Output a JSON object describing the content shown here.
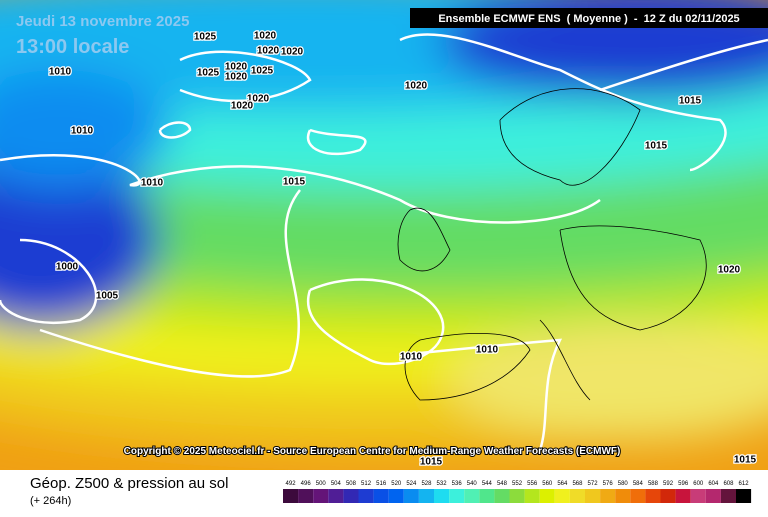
{
  "header": {
    "date": "Jeudi 13 novembre 2025",
    "time": "13:00 locale",
    "run": "Ensemble ECMWF ENS  ( Moyenne )  -  12 Z du 02/11/2025",
    "copyright": "Copyright © 2025 Meteociel.fr - Source European Centre for Medium-Range Weather Forecasts (ECMWF)"
  },
  "footer": {
    "title": "Géop. Z500 & pression au sol",
    "lead": "(+ 264h)"
  },
  "isobar_labels": [
    1025,
    1020,
    1020,
    1020,
    1010,
    1025,
    1020,
    1020,
    1025,
    1020,
    1020,
    1020,
    1010,
    1015,
    1015,
    1010,
    1015,
    1000,
    1005,
    1020,
    1010,
    1010,
    1015,
    1015
  ],
  "legend": {
    "values": [
      492,
      496,
      500,
      504,
      508,
      512,
      516,
      520,
      524,
      528,
      532,
      536,
      540,
      544,
      548,
      552,
      556,
      560,
      564,
      568,
      572,
      576,
      580,
      584,
      588,
      592,
      596,
      600,
      604,
      608,
      612
    ],
    "colors": [
      "#3c0a3c",
      "#50105a",
      "#641478",
      "#501e96",
      "#3228b4",
      "#1e3cd2",
      "#0a50e6",
      "#0064f0",
      "#0a8cf0",
      "#14b4f0",
      "#1edcf0",
      "#3cf0dc",
      "#50f0b4",
      "#50e68c",
      "#64dc64",
      "#8cdc3c",
      "#b4e61e",
      "#dcf000",
      "#f0f01e",
      "#f0dc28",
      "#f0c81e",
      "#f0aa14",
      "#f08c0a",
      "#f06e0a",
      "#e6460a",
      "#d2280a",
      "#c8143c",
      "#c83c78",
      "#b4286e",
      "#64143c",
      "#000000"
    ]
  }
}
